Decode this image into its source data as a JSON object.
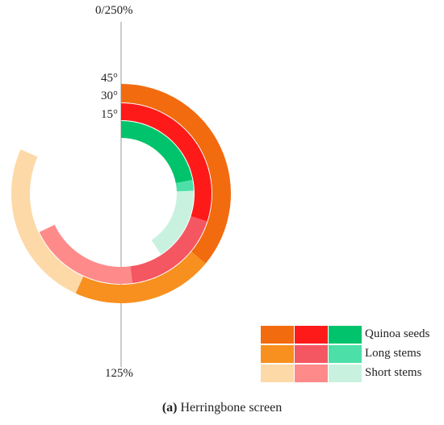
{
  "chart_data": {
    "type": "radial-stacked-bar",
    "axis": {
      "top_tick": "0/250%",
      "bottom_tick": "125%",
      "max": 250
    },
    "rings": [
      {
        "label": "45°",
        "segments": [
          {
            "series": "Quinoa seeds",
            "value": 90,
            "color": "#F26B0F"
          },
          {
            "series": "Long stems",
            "value": 52,
            "color": "#F7901E"
          },
          {
            "series": "Short stems",
            "value": 62,
            "color": "#FDD9A8"
          }
        ]
      },
      {
        "label": "30°",
        "segments": [
          {
            "series": "Quinoa seeds",
            "value": 75,
            "color": "#FF1A1A"
          },
          {
            "series": "Long stems",
            "value": 45,
            "color": "#F45662"
          },
          {
            "series": "Short stems",
            "value": 50,
            "color": "#FF8A8A"
          }
        ]
      },
      {
        "label": "15°",
        "segments": [
          {
            "series": "Quinoa seeds",
            "value": 55,
            "color": "#00C36B"
          },
          {
            "series": "Long stems",
            "value": 6,
            "color": "#4DDFA8"
          },
          {
            "series": "Short stems",
            "value": 41,
            "color": "#C8F2DF"
          }
        ]
      }
    ],
    "legend": [
      {
        "name": "Quinoa seeds",
        "colors": [
          "#F26B0F",
          "#FF1A1A",
          "#00C36B"
        ]
      },
      {
        "name": "Long stems",
        "colors": [
          "#F7901E",
          "#F45662",
          "#4DDFA8"
        ]
      },
      {
        "name": "Short stems",
        "colors": [
          "#FDD9A8",
          "#FF8A8A",
          "#C8F2DF"
        ]
      }
    ]
  },
  "caption": {
    "letter": "(a)",
    "text": " Herringbone screen"
  }
}
